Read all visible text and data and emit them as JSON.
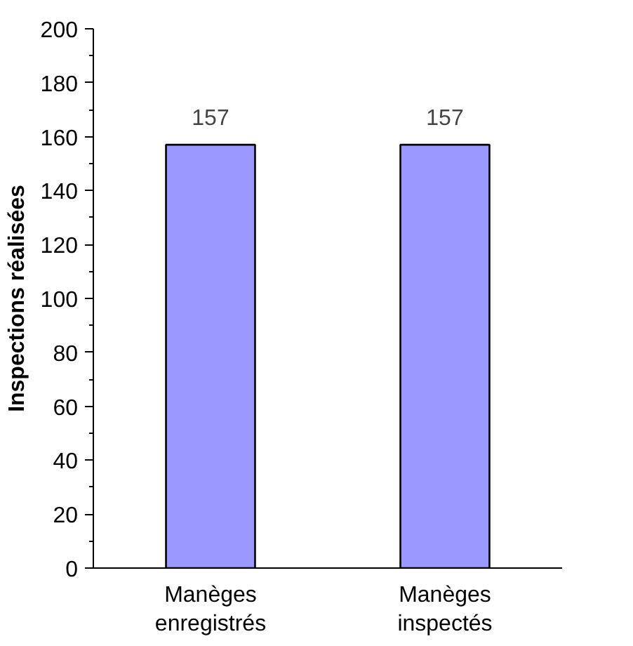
{
  "chart_data": {
    "type": "bar",
    "ylabel": "Inspections réalisées",
    "categories": [
      "Manèges enregistrés",
      "Manèges inspectés"
    ],
    "values": [
      157,
      157
    ],
    "color": "#9999ff",
    "ylim": [
      0,
      200
    ],
    "yticks": [
      0,
      20,
      40,
      60,
      80,
      100,
      120,
      140,
      160,
      180,
      200
    ],
    "data_labels": true,
    "grid": false
  }
}
